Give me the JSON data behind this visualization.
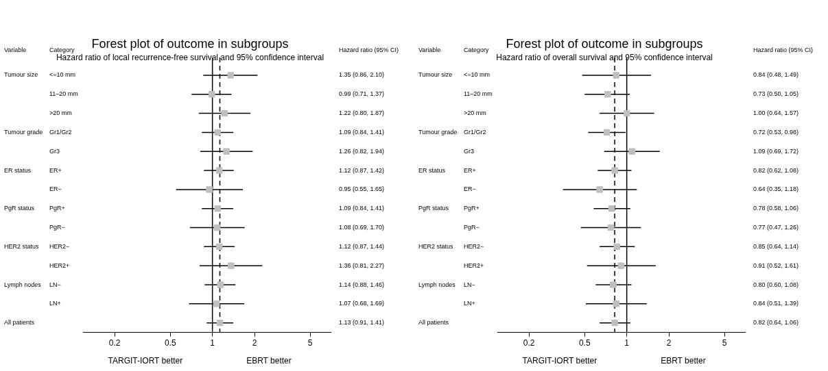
{
  "chart_data": [
    {
      "type": "scatter",
      "title": "Forest plot of outcome in subgroups",
      "subtitle": "Hazard ratio of local recurrence-free survival and 95% confidence interval",
      "ylabel": "Category",
      "y2label": "Hazard ratio (95% CI)",
      "orientation": "horizontal",
      "log": "x",
      "marker": "square",
      "color": "#bfbfbf",
      "categories": [
        "<=10 mm",
        "11–20 mm",
        ">20 mm",
        "Gr1/Gr2",
        "Gr3",
        "ER+",
        "ER−",
        "PgR+",
        "PgR−",
        "HER2−",
        "HER2+",
        "LN−",
        "LN+",
        null
      ],
      "values": [
        1.35,
        0.99,
        1.22,
        1.09,
        1.26,
        1.12,
        0.95,
        1.09,
        1.08,
        1.12,
        1.36,
        1.14,
        1.07,
        1.13
      ],
      "errors": [
        [
          0.86,
          2.1
        ],
        [
          0.71,
          1.37
        ],
        [
          0.8,
          1.87
        ],
        [
          0.84,
          1.41
        ],
        [
          0.82,
          1.94
        ],
        [
          0.87,
          1.42
        ],
        [
          0.55,
          1.65
        ],
        [
          0.84,
          1.41
        ],
        [
          0.69,
          1.7
        ],
        [
          0.87,
          1.44
        ],
        [
          0.81,
          2.27
        ],
        [
          0.88,
          1.46
        ],
        [
          0.68,
          1.69
        ],
        [
          0.91,
          1.41
        ]
      ],
      "value_labels": [
        "1.35 (0.86, 2.10)",
        "0.99 (0.71, 1.37)",
        "1.22 (0.80, 1.87)",
        "1.09 (0.84, 1.41)",
        "1.26 (0.82, 1.94)",
        "1.12 (0.87, 1.42)",
        "0.95 (0.55, 1.65)",
        "1.09 (0.84, 1.41)",
        "1.08 (0.69, 1.70)",
        "1.12 (0.87, 1.44)",
        "1.36 (0.81, 2.27)",
        "1.14 (0.88, 1.46)",
        "1.07 (0.68, 1.69)",
        "1.13 (0.91, 1.41)"
      ],
      "xlim": [
        0.12,
        7
      ],
      "xticks": [
        0.2,
        0.5,
        1,
        2,
        5
      ],
      "ref_lines": [
        {
          "axis": "x",
          "value": 1,
          "line_style": "solid",
          "color": "#000000"
        },
        {
          "axis": "x",
          "value": 1.13,
          "line_style": "dashed",
          "color": "#000000"
        }
      ],
      "annotations": [
        "Variable",
        "TARGIT-IORT better",
        "EBRT better",
        "Tumour size",
        "Tumour grade",
        "ER status",
        "PgR status",
        "HER2 status",
        "Lymph nodes",
        "All patients"
      ],
      "grid": false,
      "legend": false
    },
    {
      "type": "scatter",
      "title": "Forest plot of outcome in subgroups",
      "subtitle": "Hazard ratio of overall survival and 95% confidence interval",
      "ylabel": "Category",
      "y2label": "Hazard ratio (95% CI)",
      "orientation": "horizontal",
      "log": "x",
      "marker": "square",
      "color": "#bfbfbf",
      "categories": [
        "<=10 mm",
        "11–20 mm",
        ">20 mm",
        "Gr1/Gr2",
        "Gr3",
        "ER+",
        "ER−",
        "PgR+",
        "PgR−",
        "HER2−",
        "HER2+",
        "LN−",
        "LN+",
        null
      ],
      "values": [
        0.84,
        0.73,
        1.0,
        0.72,
        1.09,
        0.82,
        0.64,
        0.78,
        0.77,
        0.85,
        0.91,
        0.8,
        0.84,
        0.82
      ],
      "errors": [
        [
          0.48,
          1.49
        ],
        [
          0.5,
          1.05
        ],
        [
          0.64,
          1.57
        ],
        [
          0.53,
          0.98
        ],
        [
          0.69,
          1.72
        ],
        [
          0.62,
          1.08
        ],
        [
          0.35,
          1.18
        ],
        [
          0.58,
          1.06
        ],
        [
          0.47,
          1.26
        ],
        [
          0.64,
          1.14
        ],
        [
          0.52,
          1.61
        ],
        [
          0.6,
          1.08
        ],
        [
          0.51,
          1.39
        ],
        [
          0.64,
          1.06
        ]
      ],
      "value_labels": [
        "0.84 (0.48, 1.49)",
        "0.73 (0.50, 1.05)",
        "1.00 (0.64, 1.57)",
        "0.72 (0.53, 0.98)",
        "1.09 (0.69, 1.72)",
        "0.82 (0.62, 1.08)",
        "0.64 (0.35, 1.18)",
        "0.78 (0.58, 1.06)",
        "0.77 (0.47, 1.26)",
        "0.85 (0.64, 1.14)",
        "0.91 (0.52, 1.61)",
        "0.80 (0.60, 1.08)",
        "0.84 (0.51, 1.39)",
        "0.82 (0.64, 1.06)"
      ],
      "xlim": [
        0.12,
        7
      ],
      "xticks": [
        0.2,
        0.5,
        1,
        2,
        5
      ],
      "ref_lines": [
        {
          "axis": "x",
          "value": 1,
          "line_style": "solid",
          "color": "#000000"
        },
        {
          "axis": "x",
          "value": 0.82,
          "line_style": "dashed",
          "color": "#000000"
        }
      ],
      "annotations": [
        "Variable",
        "TARGIT-IORT better",
        "EBRT better",
        "Tumour size",
        "Tumour grade",
        "ER status",
        "PgR status",
        "HER2 status",
        "Lymph nodes",
        "All patients"
      ],
      "grid": false,
      "legend": false
    }
  ]
}
